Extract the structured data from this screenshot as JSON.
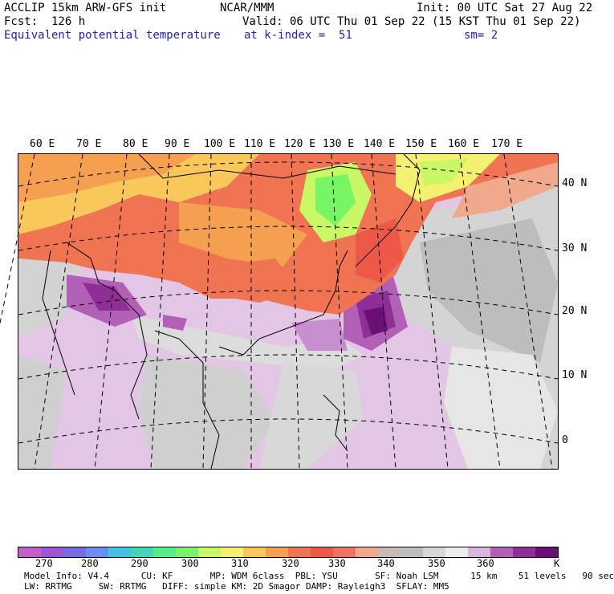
{
  "header": {
    "line1_left": "ACCLIP 15km ARW-GFS init",
    "line1_center": "NCAR/MMM",
    "line1_right": "Init: 00 UTC Sat 27 Aug 22",
    "line2_left": "Fcst:  126 h",
    "line2_right": "Valid: 06 UTC Thu 01 Sep 22 (15 KST Thu 01 Sep 22)",
    "line3_left": "Equivalent potential temperature",
    "line3_center": "at k-index =  51",
    "line3_right": "sm= 2"
  },
  "map": {
    "lon_labels": [
      "60 E",
      "70 E",
      "80 E",
      "90 E",
      "100 E",
      "110 E",
      "120 E",
      "130 E",
      "140 E",
      "150 E",
      "160 E",
      "170 E"
    ],
    "lat_labels": [
      "40 N",
      "30 N",
      "20 N",
      "10 N",
      "0"
    ]
  },
  "colorbar": {
    "colors": [
      "#c35fc7",
      "#9f55d4",
      "#7a6be0",
      "#6b8ef2",
      "#44c1e6",
      "#3fd7b6",
      "#55ec8a",
      "#78f564",
      "#c9f765",
      "#f4f071",
      "#f9c75a",
      "#f5a050",
      "#f07352",
      "#ee5848",
      "#f07461",
      "#f1a98e",
      "#c9bbb4",
      "#bdbdbd",
      "#d6d6d6",
      "#ececec",
      "#d9b6dc",
      "#b160b5",
      "#8f2e96",
      "#6a0f76"
    ],
    "labels": [
      "270",
      "280",
      "290",
      "300",
      "310",
      "320",
      "330",
      "340",
      "350",
      "360",
      "K"
    ]
  },
  "footer": {
    "line1": "Model Info: V4.4      CU: KF       MP: WDM 6class  PBL: YSU       SF: Noah LSM      15 km    51 levels   90 sec",
    "line2": "LW: RRTMG     SW: RRTMG   DIFF: simple KM: 2D Smagor DAMP: Rayleigh3  SFLAY: MM5"
  }
}
